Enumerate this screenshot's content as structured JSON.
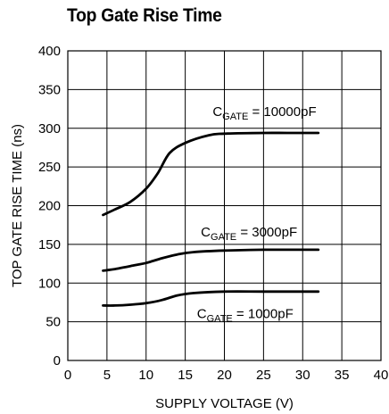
{
  "chart_data": {
    "type": "line",
    "title": "Top Gate Rise Time",
    "xlabel": "SUPPLY VOLTAGE (V)",
    "ylabel": "TOP GATE RISE TIME (ns)",
    "xlim": [
      0,
      40
    ],
    "ylim": [
      0,
      400
    ],
    "xticks": [
      0,
      5,
      10,
      15,
      20,
      25,
      30,
      35,
      40
    ],
    "yticks": [
      0,
      50,
      100,
      150,
      200,
      250,
      300,
      350,
      400
    ],
    "grid": true,
    "series": [
      {
        "name": "CGATE = 10000pF",
        "label_main": "C",
        "label_sub": "GATE",
        "label_rest": " = 10000pF",
        "points": [
          [
            4.5,
            188
          ],
          [
            6,
            195
          ],
          [
            8,
            205
          ],
          [
            10,
            222
          ],
          [
            11.5,
            242
          ],
          [
            13,
            268
          ],
          [
            15,
            281
          ],
          [
            18,
            291
          ],
          [
            20,
            293
          ],
          [
            25,
            294
          ],
          [
            28,
            294
          ],
          [
            32,
            294
          ]
        ]
      },
      {
        "name": "CGATE = 3000pF",
        "label_main": "C",
        "label_sub": "GATE",
        "label_rest": " = 3000pF",
        "points": [
          [
            4.5,
            116
          ],
          [
            6,
            118
          ],
          [
            8,
            122
          ],
          [
            10,
            126
          ],
          [
            12,
            132
          ],
          [
            14,
            137
          ],
          [
            16,
            140
          ],
          [
            20,
            142
          ],
          [
            25,
            143
          ],
          [
            30,
            143
          ],
          [
            32,
            143
          ]
        ]
      },
      {
        "name": "CGATE = 1000pF",
        "label_main": "C",
        "label_sub": "GATE",
        "label_rest": " = 1000pF",
        "points": [
          [
            4.5,
            71
          ],
          [
            6,
            71
          ],
          [
            8,
            72
          ],
          [
            10,
            74
          ],
          [
            12,
            78
          ],
          [
            14,
            84
          ],
          [
            16,
            87
          ],
          [
            20,
            89
          ],
          [
            25,
            89
          ],
          [
            30,
            89
          ],
          [
            32,
            89
          ]
        ]
      }
    ]
  }
}
